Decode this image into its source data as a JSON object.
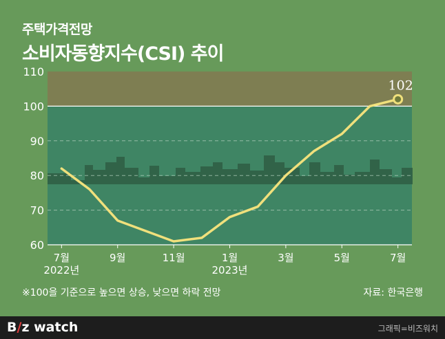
{
  "header": {
    "subtitle": "주택가격전망",
    "title": "소비자동향지수(CSI) 추이"
  },
  "chart_data": {
    "type": "line",
    "title": "소비자동향지수(CSI) 추이",
    "xlabel": "",
    "ylabel": "",
    "ylim": [
      60,
      110
    ],
    "yticks": [
      60,
      70,
      80,
      90,
      100,
      110
    ],
    "x": [
      "2022-07",
      "2022-08",
      "2022-09",
      "2022-10",
      "2022-11",
      "2022-12",
      "2023-01",
      "2023-02",
      "2023-03",
      "2023-04",
      "2023-05",
      "2023-06",
      "2023-07"
    ],
    "xtick_labels": [
      {
        "x": "2022-07",
        "label": "7월",
        "sub": "2022년"
      },
      {
        "x": "2022-09",
        "label": "9월",
        "sub": ""
      },
      {
        "x": "2022-11",
        "label": "11월",
        "sub": ""
      },
      {
        "x": "2023-01",
        "label": "1월",
        "sub": "2023년"
      },
      {
        "x": "2023-03",
        "label": "3월",
        "sub": ""
      },
      {
        "x": "2023-05",
        "label": "5월",
        "sub": ""
      },
      {
        "x": "2023-07",
        "label": "7월",
        "sub": ""
      }
    ],
    "series": [
      {
        "values": [
          82,
          76,
          67,
          64,
          61,
          62,
          68,
          71,
          80,
          87,
          92,
          100,
          102
        ]
      }
    ],
    "annotations": [
      {
        "x": "2023-07",
        "label": "102"
      }
    ],
    "reference_line": 100,
    "grid": true,
    "colors": {
      "line": "#f0e07c",
      "plot_above_ref": "#7e7e52",
      "plot_below_ref": "#3f8564",
      "skyline": "#2f5e44"
    }
  },
  "footnote": {
    "note": "※100을 기준으로 높으면 상승, 낮으면 하락 전망",
    "source": "자료: 한국은행"
  },
  "footer": {
    "logo_left": "B",
    "logo_slash": "/",
    "logo_right": "z watch",
    "credit": "그래픽=비즈워치"
  }
}
